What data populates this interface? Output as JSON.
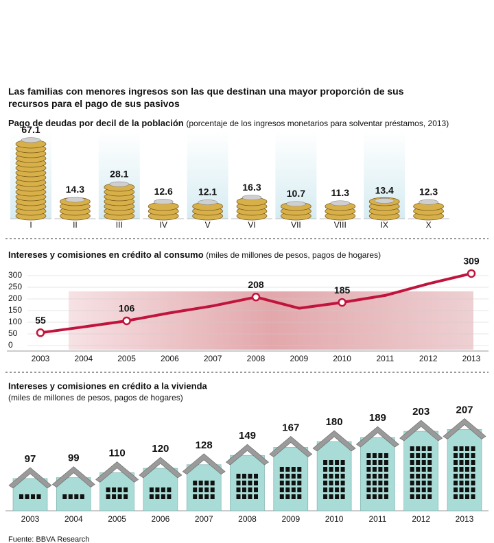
{
  "header": {
    "title": "Las familias con menores ingresos son las que destinan una mayor proporción de sus recursos para el pago de sus pasivos"
  },
  "chart_data": [
    {
      "type": "bar",
      "title": "Pago de deudas por decil de la población",
      "subtitle": "(porcentaje de los ingresos monetarios para solventar préstamos, 2013)",
      "categories": [
        "I",
        "II",
        "III",
        "IV",
        "V",
        "VI",
        "VII",
        "VIII",
        "IX",
        "X"
      ],
      "values": [
        67.1,
        14.3,
        28.1,
        12.6,
        12.1,
        16.3,
        10.7,
        11.3,
        13.4,
        12.3
      ],
      "color": "#d8b04a"
    },
    {
      "type": "line",
      "title": "Intereses y comisiones en crédito al consumo",
      "subtitle": "(miles de millones de pesos, pagos de hogares)",
      "x": [
        2003,
        2004,
        2005,
        2006,
        2007,
        2008,
        2009,
        2010,
        2011,
        2012,
        2013
      ],
      "values": [
        55,
        80,
        106,
        140,
        170,
        208,
        160,
        185,
        215,
        265,
        309
      ],
      "value_labels": [
        "55",
        null,
        "106",
        null,
        null,
        "208",
        null,
        "185",
        null,
        null,
        "309"
      ],
      "color": "#c0143c",
      "ylim": [
        0,
        300
      ],
      "yticks": [
        0,
        50,
        100,
        150,
        200,
        250,
        300
      ],
      "grid": true
    },
    {
      "type": "bar",
      "title": "Intereses y comisiones en crédito a la vivienda",
      "subtitle": "(miles de millones de pesos, pagos de hogares)",
      "categories": [
        "2003",
        "2004",
        "2005",
        "2006",
        "2007",
        "2008",
        "2009",
        "2010",
        "2011",
        "2012",
        "2013"
      ],
      "values": [
        97,
        99,
        110,
        120,
        128,
        149,
        167,
        180,
        189,
        203,
        207
      ],
      "color": "#a9dcd6"
    }
  ],
  "footer": {
    "source": "Fuente: BBVA Research"
  }
}
